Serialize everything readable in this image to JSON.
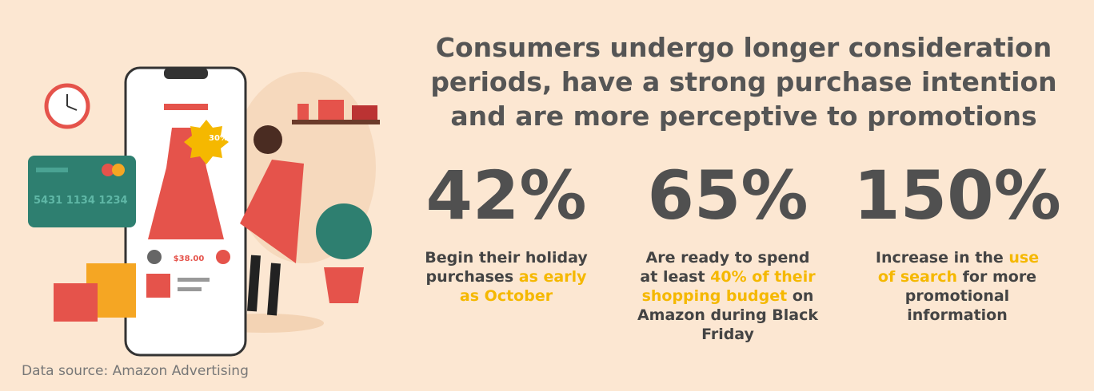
{
  "header": {
    "title": "Consumers undergo longer consideration periods, have a strong purchase intention and are more perceptive to promotions"
  },
  "stats": [
    {
      "value": "42%",
      "description": [
        {
          "text": "Begin their holiday purchases ",
          "highlight": false
        },
        {
          "text": "as early as October",
          "highlight": true
        }
      ]
    },
    {
      "value": "65%",
      "description": [
        {
          "text": "Are ready to spend at least ",
          "highlight": false
        },
        {
          "text": "40% of their shopping budget",
          "highlight": true
        },
        {
          "text": " on Amazon during Black Friday",
          "highlight": false
        }
      ]
    },
    {
      "value": "150%",
      "description": [
        {
          "text": "Increase in the ",
          "highlight": false
        },
        {
          "text": "use of search",
          "highlight": true
        },
        {
          "text": " for more promotional information",
          "highlight": false
        }
      ]
    }
  ],
  "highlight_color": "#f5b800",
  "illustration": {
    "card_number": "5431 1134 1234",
    "price": "$38.00",
    "badge": "30%"
  },
  "footer": {
    "source": "Data source: Amazon Advertising"
  }
}
